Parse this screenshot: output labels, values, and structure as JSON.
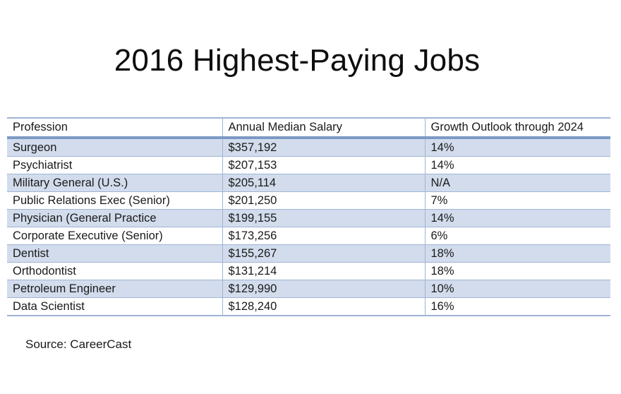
{
  "title": "2016 Highest-Paying Jobs",
  "table": {
    "headers": [
      "Profession",
      "Annual Median Salary",
      "Growth Outlook through 2024"
    ],
    "rows": [
      [
        "Surgeon",
        "$357,192",
        "14%"
      ],
      [
        "Psychiatrist",
        "$207,153",
        "14%"
      ],
      [
        "Military General (U.S.)",
        "$205,114",
        "N/A"
      ],
      [
        "Public Relations Exec (Senior)",
        "$201,250",
        "7%"
      ],
      [
        "Physician (General Practice",
        "$199,155",
        "14%"
      ],
      [
        "Corporate Executive (Senior)",
        "$173,256",
        "6%"
      ],
      [
        "Dentist",
        "$155,267",
        "18%"
      ],
      [
        "Orthodontist",
        "$131,214",
        "18%"
      ],
      [
        "Petroleum Engineer",
        "$129,990",
        "10%"
      ],
      [
        "Data Scientist",
        "$128,240",
        "16%"
      ]
    ]
  },
  "source": "Source:  CareerCast",
  "colors": {
    "band_row": "#d2dcec",
    "header_rule": "#7d99c4",
    "grid_line": "#9fb4d4"
  }
}
